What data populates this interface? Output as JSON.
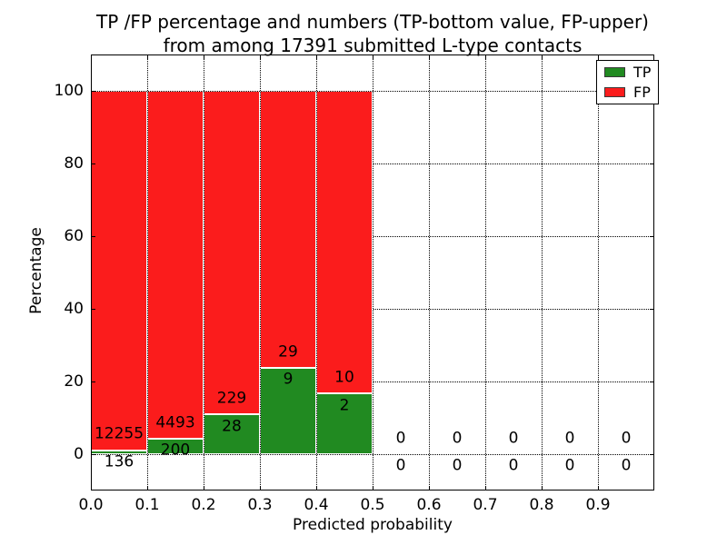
{
  "title": {
    "line1": "TP /FP percentage and numbers (TP-bottom value, FP-upper)",
    "line2": "from among 17391 submitted L-type contacts"
  },
  "axes": {
    "xlabel": "Predicted probability",
    "ylabel": "Percentage"
  },
  "legend": {
    "position": "upper right",
    "items": [
      {
        "label": "TP",
        "color": "#218a21"
      },
      {
        "label": "FP",
        "color": "#fb1c1c"
      }
    ]
  },
  "chart_data": {
    "type": "bar",
    "stacked": true,
    "title": "TP /FP percentage and numbers (TP-bottom value, FP-upper) from among 17391 submitted L-type contacts",
    "xlabel": "Predicted probability",
    "ylabel": "Percentage",
    "total_submitted": 17391,
    "xlim": [
      0,
      1
    ],
    "ylim": [
      -10,
      110
    ],
    "xtick_values": [
      0,
      0.1,
      0.2,
      0.3,
      0.4,
      0.5,
      0.6,
      0.7,
      0.8,
      0.9
    ],
    "xtick_labels": [
      "0.0",
      "0.1",
      "0.2",
      "0.3",
      "0.4",
      "0.5",
      "0.6",
      "0.7",
      "0.8",
      "0.9"
    ],
    "ytick_values": [
      0,
      20,
      40,
      60,
      80,
      100
    ],
    "ytick_labels": [
      "0",
      "20",
      "40",
      "60",
      "80",
      "100"
    ],
    "grid": "dotted",
    "legend_position": "upper right",
    "series": [
      {
        "name": "TP",
        "color": "#218a21"
      },
      {
        "name": "FP",
        "color": "#fb1c1c"
      }
    ],
    "bins": [
      {
        "x0": 0.0,
        "x1": 0.1,
        "tp_count": 136,
        "fp_count": 12255,
        "tp_pct": 1.1,
        "fp_pct": 98.9
      },
      {
        "x0": 0.1,
        "x1": 0.2,
        "tp_count": 200,
        "fp_count": 4493,
        "tp_pct": 4.26,
        "fp_pct": 95.74
      },
      {
        "x0": 0.2,
        "x1": 0.3,
        "tp_count": 28,
        "fp_count": 229,
        "tp_pct": 10.89,
        "fp_pct": 89.11
      },
      {
        "x0": 0.3,
        "x1": 0.4,
        "tp_count": 9,
        "fp_count": 29,
        "tp_pct": 23.68,
        "fp_pct": 76.32
      },
      {
        "x0": 0.4,
        "x1": 0.5,
        "tp_count": 2,
        "fp_count": 10,
        "tp_pct": 16.67,
        "fp_pct": 83.33
      },
      {
        "x0": 0.5,
        "x1": 0.6,
        "tp_count": 0,
        "fp_count": 0,
        "tp_pct": 0,
        "fp_pct": 0
      },
      {
        "x0": 0.6,
        "x1": 0.7,
        "tp_count": 0,
        "fp_count": 0,
        "tp_pct": 0,
        "fp_pct": 0
      },
      {
        "x0": 0.7,
        "x1": 0.8,
        "tp_count": 0,
        "fp_count": 0,
        "tp_pct": 0,
        "fp_pct": 0
      },
      {
        "x0": 0.8,
        "x1": 0.9,
        "tp_count": 0,
        "fp_count": 0,
        "tp_pct": 0,
        "fp_pct": 0
      },
      {
        "x0": 0.9,
        "x1": 1.0,
        "tp_count": 0,
        "fp_count": 0,
        "tp_pct": 0,
        "fp_pct": 0
      }
    ]
  }
}
